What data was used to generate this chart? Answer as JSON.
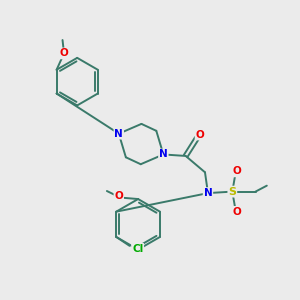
{
  "background_color": "#ebebeb",
  "bond_color": "#3a7a6a",
  "atom_colors": {
    "N": "#0000ee",
    "O": "#ee0000",
    "S": "#bbbb00",
    "Cl": "#00aa00",
    "C": "#3a7a6a"
  }
}
